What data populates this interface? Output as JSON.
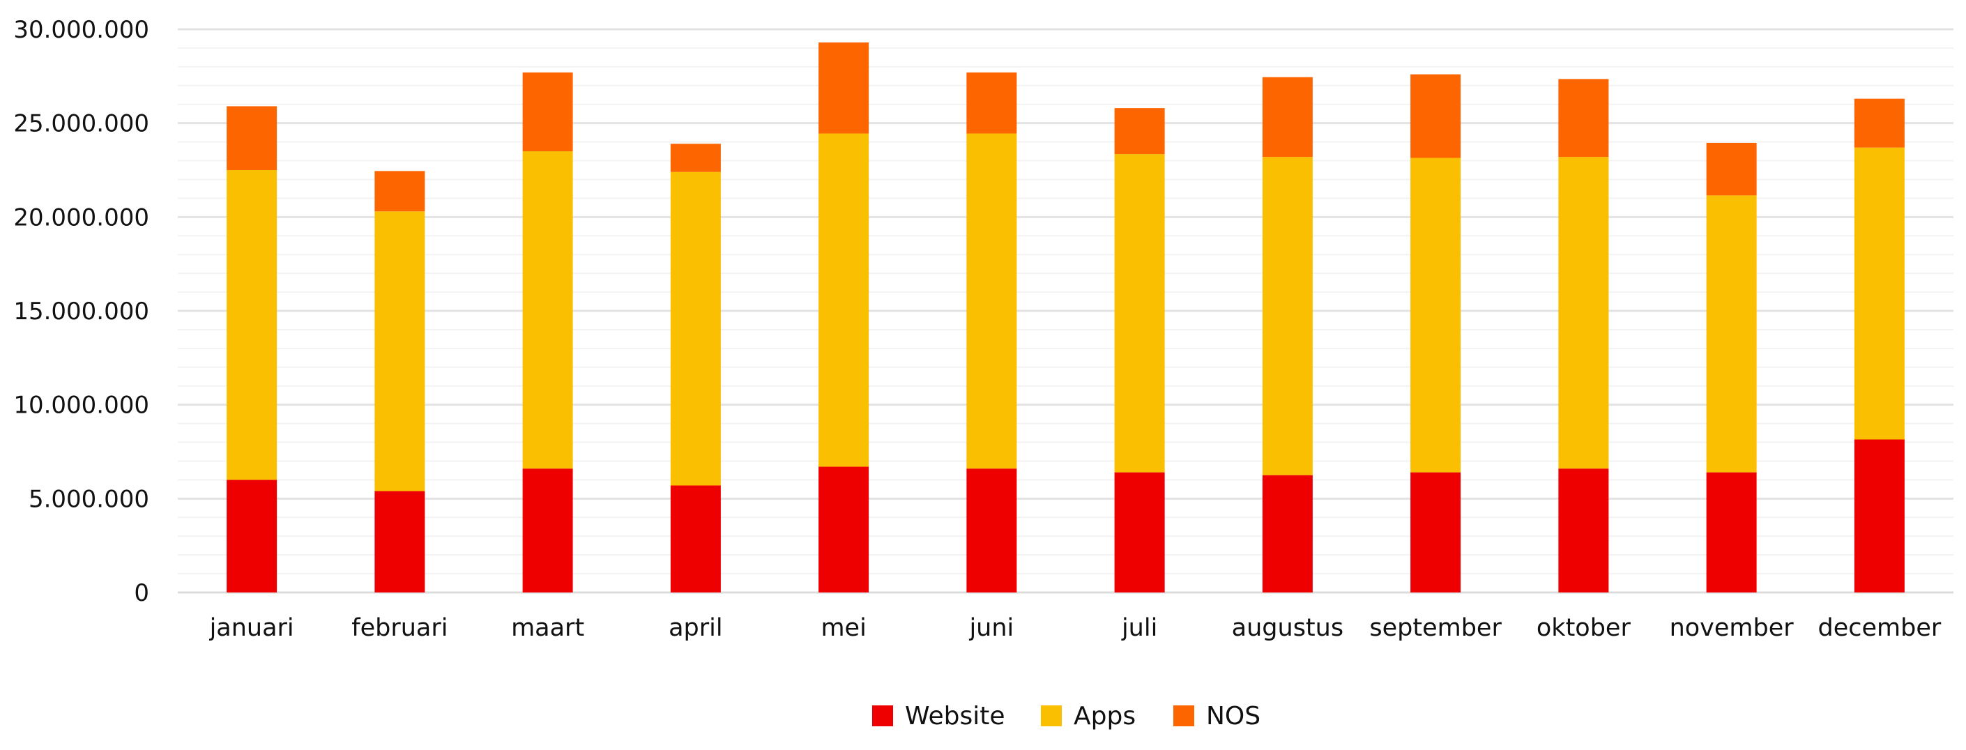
{
  "chart_data": {
    "type": "bar",
    "stacked": true,
    "categories": [
      "januari",
      "februari",
      "maart",
      "april",
      "mei",
      "juni",
      "juli",
      "augustus",
      "september",
      "oktober",
      "november",
      "december"
    ],
    "series": [
      {
        "name": "Website",
        "color": "#ee0000",
        "values": [
          6000000,
          5400000,
          6600000,
          5700000,
          6700000,
          6600000,
          6400000,
          6250000,
          6400000,
          6600000,
          6400000,
          8150000
        ]
      },
      {
        "name": "Apps",
        "color": "#f9bf00",
        "values": [
          16500000,
          14900000,
          16900000,
          16700000,
          17750000,
          17850000,
          16950000,
          16950000,
          16750000,
          16600000,
          14750000,
          15550000
        ]
      },
      {
        "name": "NOS",
        "color": "#fc6500",
        "values": [
          3400000,
          2150000,
          4200000,
          1500000,
          4850000,
          3250000,
          2450000,
          4250000,
          4450000,
          4150000,
          2800000,
          2600000
        ]
      }
    ],
    "yticks": [
      "0",
      "5.000.000",
      "10.000.000",
      "15.000.000",
      "20.000.000",
      "25.000.000",
      "30.000.000"
    ],
    "ylim": [
      0,
      30000000
    ],
    "grid": true,
    "legend": "bottom-center"
  }
}
